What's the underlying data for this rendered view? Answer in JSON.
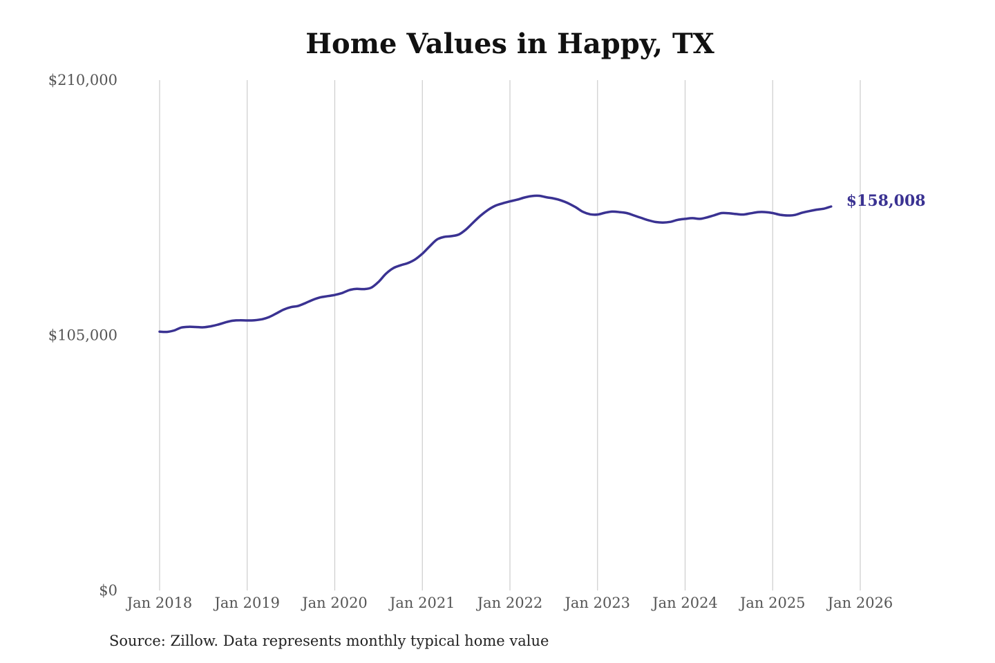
{
  "chart_data": {
    "type": "line",
    "title": "Home Values in Happy, TX",
    "source": "Source: Zillow. Data represents monthly typical home value",
    "ylim": [
      0,
      210000
    ],
    "y_ticks": [
      {
        "value": 0,
        "label": "$0"
      },
      {
        "value": 105000,
        "label": "$105,000"
      },
      {
        "value": 210000,
        "label": "$210,000"
      }
    ],
    "xlim": [
      "2018-01",
      "2026-01"
    ],
    "x_ticks": [
      {
        "value": "2018-01",
        "label": "Jan 2018"
      },
      {
        "value": "2019-01",
        "label": "Jan 2019"
      },
      {
        "value": "2020-01",
        "label": "Jan 2020"
      },
      {
        "value": "2021-01",
        "label": "Jan 2021"
      },
      {
        "value": "2022-01",
        "label": "Jan 2022"
      },
      {
        "value": "2023-01",
        "label": "Jan 2023"
      },
      {
        "value": "2024-01",
        "label": "Jan 2024"
      },
      {
        "value": "2025-01",
        "label": "Jan 2025"
      },
      {
        "value": "2026-01",
        "label": "Jan 2026"
      }
    ],
    "vertical_grid": true,
    "line_color": "#3a3292",
    "end_label": "$158,008",
    "series": [
      {
        "points": [
          [
            "2018-01",
            106500
          ],
          [
            "2018-02",
            106400
          ],
          [
            "2018-03",
            107000
          ],
          [
            "2018-04",
            108200
          ],
          [
            "2018-05",
            108500
          ],
          [
            "2018-06",
            108400
          ],
          [
            "2018-07",
            108300
          ],
          [
            "2018-08",
            108700
          ],
          [
            "2018-09",
            109400
          ],
          [
            "2018-10",
            110300
          ],
          [
            "2018-11",
            111000
          ],
          [
            "2018-12",
            111200
          ],
          [
            "2019-01",
            111100
          ],
          [
            "2019-02",
            111200
          ],
          [
            "2019-03",
            111600
          ],
          [
            "2019-04",
            112500
          ],
          [
            "2019-05",
            114000
          ],
          [
            "2019-06",
            115600
          ],
          [
            "2019-07",
            116600
          ],
          [
            "2019-08",
            117100
          ],
          [
            "2019-09",
            118300
          ],
          [
            "2019-10",
            119600
          ],
          [
            "2019-11",
            120600
          ],
          [
            "2019-12",
            121100
          ],
          [
            "2020-01",
            121600
          ],
          [
            "2020-02",
            122400
          ],
          [
            "2020-03",
            123600
          ],
          [
            "2020-04",
            124100
          ],
          [
            "2020-05",
            124000
          ],
          [
            "2020-06",
            124600
          ],
          [
            "2020-07",
            127000
          ],
          [
            "2020-08",
            130300
          ],
          [
            "2020-09",
            132600
          ],
          [
            "2020-10",
            133800
          ],
          [
            "2020-11",
            134700
          ],
          [
            "2020-12",
            136200
          ],
          [
            "2021-01",
            138600
          ],
          [
            "2021-02",
            141600
          ],
          [
            "2021-03",
            144400
          ],
          [
            "2021-04",
            145500
          ],
          [
            "2021-05",
            145800
          ],
          [
            "2021-06",
            146500
          ],
          [
            "2021-07",
            148600
          ],
          [
            "2021-08",
            151500
          ],
          [
            "2021-09",
            154300
          ],
          [
            "2021-10",
            156600
          ],
          [
            "2021-11",
            158300
          ],
          [
            "2021-12",
            159300
          ],
          [
            "2022-01",
            160100
          ],
          [
            "2022-02",
            160800
          ],
          [
            "2022-03",
            161700
          ],
          [
            "2022-04",
            162300
          ],
          [
            "2022-05",
            162400
          ],
          [
            "2022-06",
            161800
          ],
          [
            "2022-07",
            161300
          ],
          [
            "2022-08",
            160500
          ],
          [
            "2022-09",
            159300
          ],
          [
            "2022-10",
            157700
          ],
          [
            "2022-11",
            155800
          ],
          [
            "2022-12",
            154800
          ],
          [
            "2023-01",
            154700
          ],
          [
            "2023-02",
            155400
          ],
          [
            "2023-03",
            155900
          ],
          [
            "2023-04",
            155700
          ],
          [
            "2023-05",
            155300
          ],
          [
            "2023-06",
            154300
          ],
          [
            "2023-07",
            153300
          ],
          [
            "2023-08",
            152300
          ],
          [
            "2023-09",
            151600
          ],
          [
            "2023-10",
            151400
          ],
          [
            "2023-11",
            151700
          ],
          [
            "2023-12",
            152500
          ],
          [
            "2024-01",
            152900
          ],
          [
            "2024-02",
            153200
          ],
          [
            "2024-03",
            152900
          ],
          [
            "2024-04",
            153500
          ],
          [
            "2024-05",
            154400
          ],
          [
            "2024-06",
            155300
          ],
          [
            "2024-07",
            155200
          ],
          [
            "2024-08",
            154900
          ],
          [
            "2024-09",
            154700
          ],
          [
            "2024-10",
            155200
          ],
          [
            "2024-11",
            155700
          ],
          [
            "2024-12",
            155700
          ],
          [
            "2025-01",
            155300
          ],
          [
            "2025-02",
            154600
          ],
          [
            "2025-03",
            154300
          ],
          [
            "2025-04",
            154500
          ],
          [
            "2025-05",
            155400
          ],
          [
            "2025-06",
            156100
          ],
          [
            "2025-07",
            156700
          ],
          [
            "2025-08",
            157100
          ],
          [
            "2025-09",
            158008
          ]
        ]
      }
    ]
  }
}
